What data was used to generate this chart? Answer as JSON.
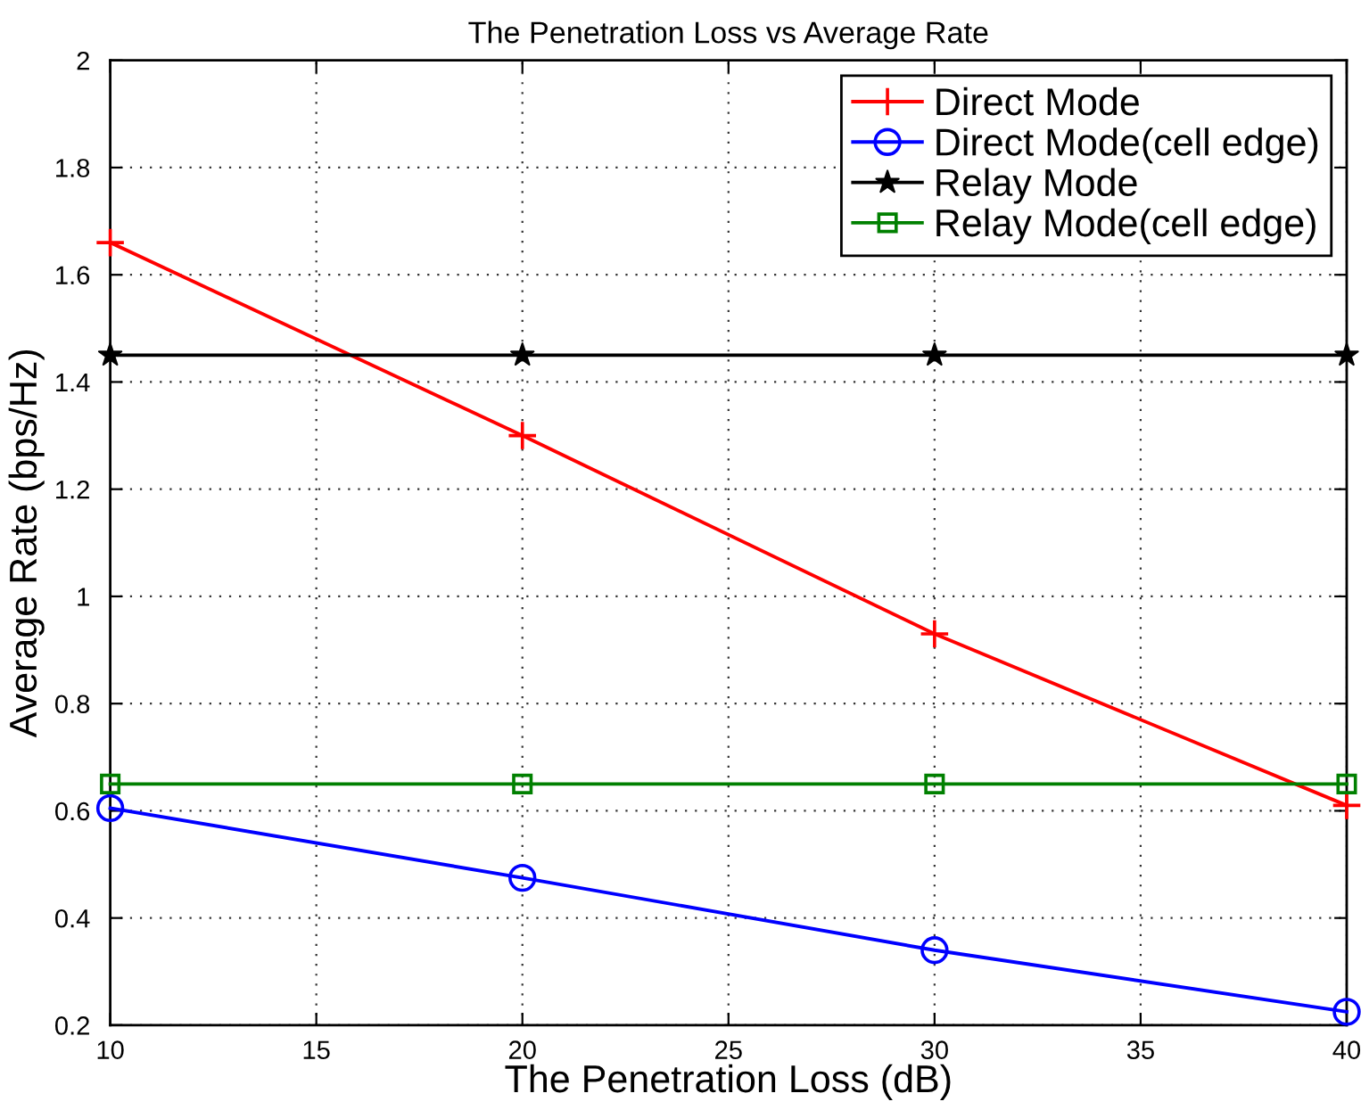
{
  "chart_data": {
    "type": "line",
    "title": "The Penetration Loss vs Average Rate",
    "xlabel": "The Penetration Loss (dB)",
    "ylabel": "Average Rate (bps/Hz)",
    "x": [
      10,
      20,
      30,
      40
    ],
    "series": [
      {
        "name": "Direct Mode",
        "color": "#ff0000",
        "marker": "cross",
        "values": [
          1.66,
          1.3,
          0.93,
          0.61
        ]
      },
      {
        "name": "Direct Mode(cell edge)",
        "color": "#0000ff",
        "marker": "circle",
        "values": [
          0.605,
          0.475,
          0.34,
          0.225
        ]
      },
      {
        "name": "Relay Mode",
        "color": "#000000",
        "marker": "star",
        "values": [
          1.45,
          1.45,
          1.45,
          1.45
        ]
      },
      {
        "name": "Relay Mode(cell edge)",
        "color": "#008000",
        "marker": "square",
        "values": [
          0.65,
          0.65,
          0.65,
          0.65
        ]
      }
    ],
    "xlim": [
      10,
      40
    ],
    "xticks": [
      10,
      15,
      20,
      25,
      30,
      35,
      40
    ],
    "ylim": [
      0.2,
      2
    ],
    "yticks": [
      0.2,
      0.4,
      0.6,
      0.8,
      1,
      1.2,
      1.4,
      1.6,
      1.8,
      2
    ],
    "grid": true,
    "legend": "top right",
    "line_style": "solid"
  }
}
